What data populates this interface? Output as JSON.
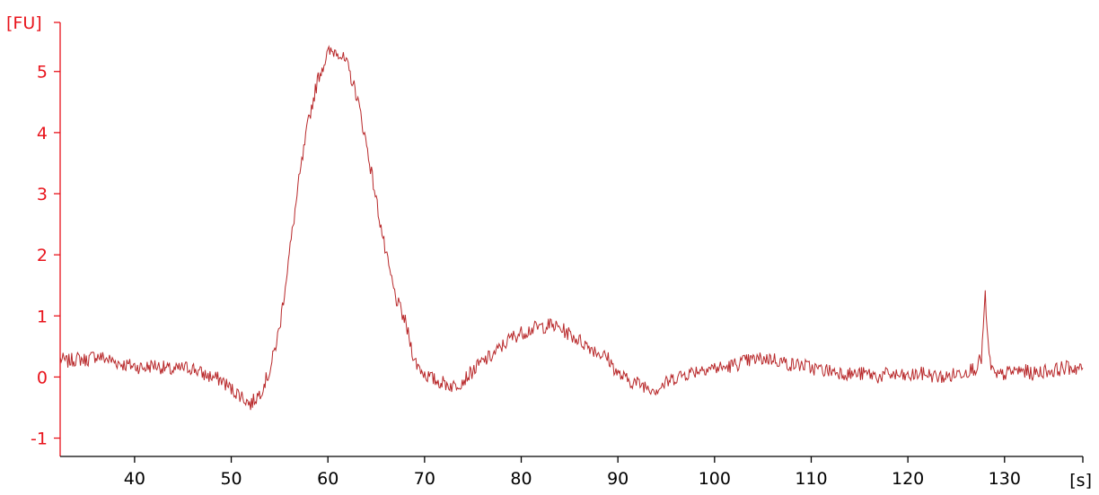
{
  "colors": {
    "y_axis": "#e8141c",
    "x_axis": "#000000",
    "trace": "#b8282a",
    "background": "#ffffff"
  },
  "chart_data": {
    "type": "line",
    "title": "",
    "xlabel": "[s]",
    "ylabel": "[FU]",
    "xlim": [
      32.3,
      138.1
    ],
    "ylim": [
      -1.3,
      5.95
    ],
    "x_ticks": [
      40,
      50,
      60,
      70,
      80,
      90,
      100,
      110,
      120,
      130
    ],
    "x_tick_labels": [
      "40",
      "50",
      "60",
      "70",
      "80",
      "90",
      "100",
      "110",
      "120",
      "130"
    ],
    "y_ticks": [
      -1,
      0,
      1,
      2,
      3,
      4,
      5
    ],
    "y_tick_labels": [
      "-1",
      "0",
      "1",
      "2",
      "3",
      "4",
      "5"
    ],
    "grid": false,
    "series": [
      {
        "x": [
          32.3,
          33,
          34,
          35,
          36,
          37,
          38,
          39,
          40,
          41,
          42,
          43,
          44,
          45,
          46,
          47,
          48,
          49,
          50,
          51,
          52,
          53,
          54,
          55,
          56,
          57,
          58,
          59,
          60,
          61,
          62,
          63,
          64,
          65,
          66,
          67,
          68,
          69,
          70,
          71,
          72,
          73,
          74,
          75,
          76,
          77,
          78,
          79,
          80,
          81,
          82,
          83,
          84,
          85,
          86,
          87,
          88,
          89,
          90,
          91,
          92,
          93,
          94,
          95,
          96,
          97,
          98,
          99,
          100,
          101,
          102,
          103,
          104,
          105,
          106,
          107,
          108,
          109,
          110,
          111,
          112,
          113,
          114,
          115,
          116,
          117,
          118,
          119,
          120,
          121,
          122,
          123,
          124,
          125,
          126,
          127,
          127.6,
          128,
          128.4,
          129,
          130,
          131,
          132,
          133,
          134,
          135,
          136,
          137,
          138.1
        ],
        "y": [
          0.3,
          0.25,
          0.3,
          0.28,
          0.35,
          0.3,
          0.25,
          0.2,
          0.18,
          0.15,
          0.2,
          0.15,
          0.1,
          0.15,
          0.15,
          0.05,
          0.0,
          -0.05,
          -0.2,
          -0.3,
          -0.45,
          -0.25,
          0.1,
          0.8,
          2.0,
          3.2,
          4.2,
          4.9,
          5.3,
          5.35,
          5.1,
          4.6,
          3.8,
          2.9,
          2.0,
          1.3,
          0.9,
          0.25,
          0.05,
          -0.05,
          -0.1,
          -0.15,
          -0.05,
          0.1,
          0.25,
          0.35,
          0.5,
          0.65,
          0.72,
          0.78,
          0.82,
          0.85,
          0.8,
          0.7,
          0.6,
          0.5,
          0.4,
          0.3,
          0.05,
          -0.05,
          -0.1,
          -0.15,
          -0.2,
          -0.1,
          0.0,
          0.05,
          0.1,
          0.15,
          0.15,
          0.15,
          0.2,
          0.25,
          0.28,
          0.3,
          0.3,
          0.25,
          0.2,
          0.2,
          0.15,
          0.12,
          0.1,
          0.08,
          0.05,
          0.05,
          0.05,
          0.0,
          0.05,
          0.02,
          0.0,
          0.05,
          0.05,
          0.0,
          0.0,
          0.05,
          0.1,
          0.15,
          0.3,
          1.3,
          0.3,
          0.0,
          0.05,
          0.1,
          0.1,
          0.05,
          0.1,
          0.1,
          0.15,
          0.15,
          0.15
        ]
      }
    ]
  }
}
